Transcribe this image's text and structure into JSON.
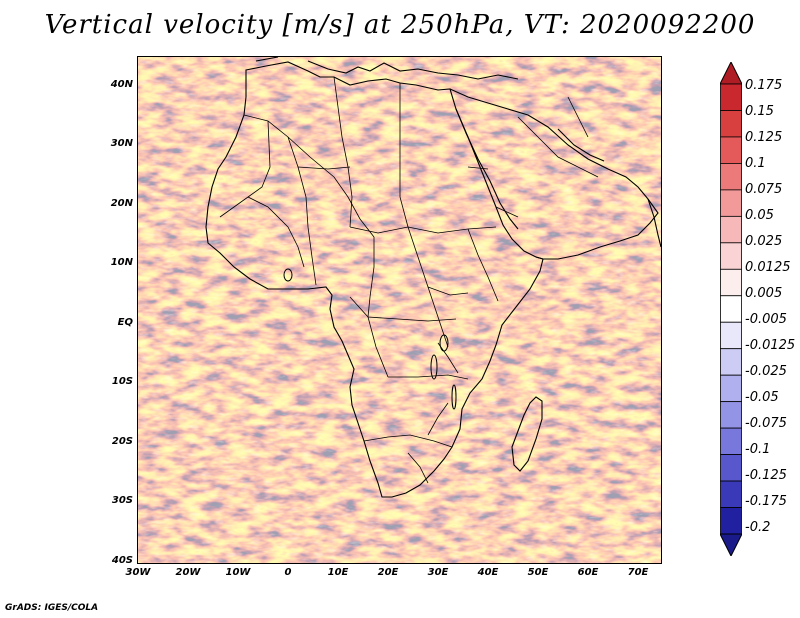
{
  "title": "Vertical velocity [m/s] at 250hPa, VT: 2020092200",
  "map": {
    "projection": "lat-lon",
    "lon_range": [
      -30,
      75
    ],
    "lat_range": [
      -40,
      45
    ]
  },
  "lat_labels": [
    "40N",
    "30N",
    "20N",
    "10N",
    "EQ",
    "10S",
    "20S",
    "30S",
    "40S"
  ],
  "lon_labels": [
    "30W",
    "20W",
    "10W",
    "0",
    "10E",
    "20E",
    "30E",
    "40E",
    "50E",
    "60E",
    "70E"
  ],
  "colorbar": {
    "labels": [
      "0.175",
      "0.15",
      "0.125",
      "0.1",
      "0.075",
      "0.05",
      "0.025",
      "0.0125",
      "0.005",
      "-0.005",
      "-0.0125",
      "-0.025",
      "-0.05",
      "-0.075",
      "-0.1",
      "-0.125",
      "-0.175",
      "-0.2"
    ],
    "colors": [
      "#b01c24",
      "#c8282e",
      "#d84040",
      "#e45a5a",
      "#ec7a7a",
      "#f29a9a",
      "#f6b8b8",
      "#fad4d4",
      "#fdeeee",
      "#ffffff",
      "#e8e8fa",
      "#ccccf4",
      "#b0b0ee",
      "#9494e6",
      "#7878dc",
      "#5858cc",
      "#3a3ab8",
      "#2020a0",
      "#1a1a8a"
    ]
  },
  "footer": "GrADS: IGES/COLA"
}
